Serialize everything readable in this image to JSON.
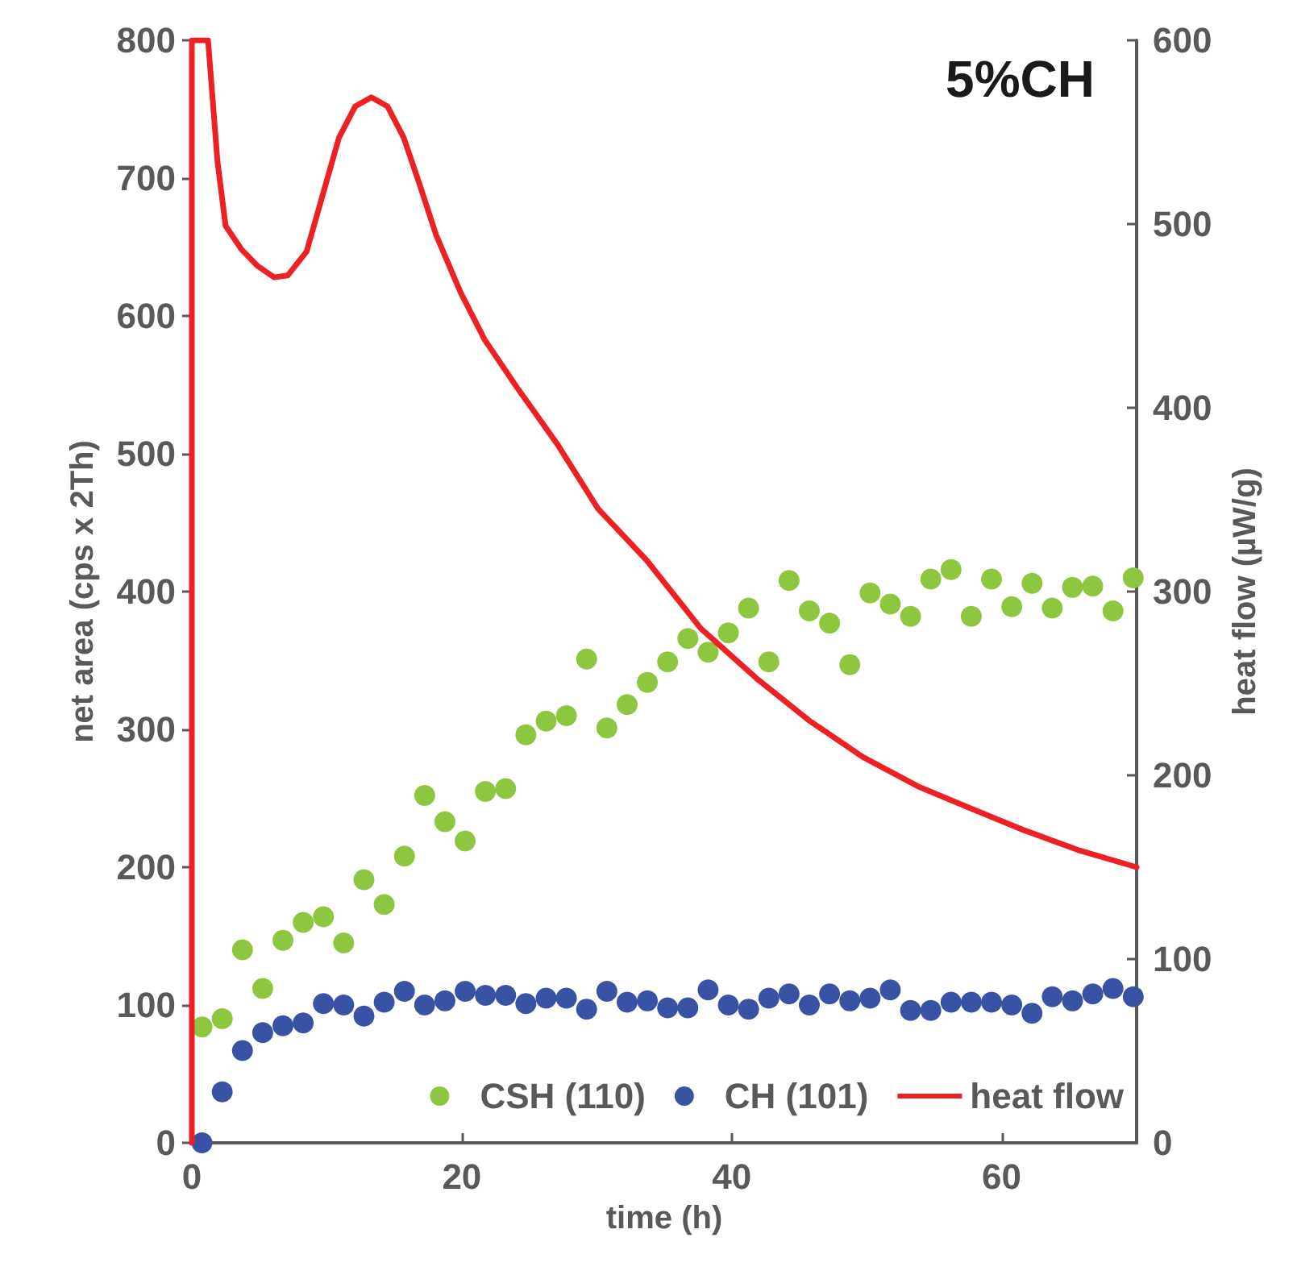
{
  "chart_data": {
    "type": "scatter",
    "title": "5%CH",
    "xlabel": "time (h)",
    "ylabel": "net area (cps x 2Th)",
    "y2label": "heat flow (µW/g)",
    "x": [
      0.75,
      2.25,
      3.75,
      5.25,
      6.75,
      8.25,
      9.75,
      11.25,
      12.75,
      14.25,
      15.75,
      17.25,
      18.75,
      20.25,
      21.75,
      23.25,
      24.75,
      26.25,
      27.75,
      29.25,
      30.75,
      32.25,
      33.75,
      35.25,
      36.75,
      38.25,
      39.75,
      41.25,
      42.75,
      44.25,
      45.75,
      47.25,
      48.75,
      50.25,
      51.75,
      53.25,
      54.75,
      56.25,
      57.75,
      59.25,
      60.75,
      62.25,
      63.75,
      65.25,
      66.75,
      68.25,
      69.75
    ],
    "series": [
      {
        "name": "CSH (110)",
        "marker": "circle",
        "color": "#8dc63f",
        "values": [
          84,
          90,
          140,
          112,
          147,
          160,
          164,
          145,
          191,
          173,
          208,
          252,
          233,
          219,
          255,
          257,
          296,
          306,
          310,
          351,
          301,
          318,
          334,
          349,
          366,
          356,
          370,
          388,
          349,
          408,
          386,
          377,
          347,
          399,
          391,
          382,
          409,
          416,
          382,
          409,
          389,
          406,
          388,
          403,
          404,
          386,
          410
        ]
      },
      {
        "name": "CH (101)",
        "marker": "circle",
        "color": "#3953a4",
        "values": [
          0,
          37,
          67,
          80,
          85,
          87,
          101,
          100,
          92,
          102,
          110,
          100,
          103,
          110,
          107,
          107,
          101,
          105,
          105,
          97,
          110,
          102,
          103,
          98,
          98,
          111,
          100,
          97,
          105,
          108,
          100,
          108,
          103,
          105,
          111,
          96,
          96,
          102,
          102,
          102,
          100,
          94,
          106,
          103,
          108,
          112,
          106
        ]
      },
      {
        "name": "heat flow",
        "type": "line",
        "marker": "none",
        "axis": "y2",
        "color": "#ed2024",
        "x": [
          0,
          0,
          1.2,
          1.9,
          2.5,
          3.7,
          4.9,
          6.1,
          7.1,
          8.5,
          9.7,
          10.9,
          12.1,
          13.3,
          14.5,
          15.7,
          16.9,
          18.1,
          19.9,
          21.7,
          24.1,
          27.1,
          30.1,
          33.7,
          37.7,
          41.8,
          45.7,
          49.7,
          53.8,
          57.7,
          61.7,
          65.8,
          70
        ],
        "values": [
          0,
          600,
          600,
          534,
          499,
          486,
          477,
          471,
          472,
          485,
          516,
          547,
          564,
          569,
          564,
          547,
          521,
          494,
          463,
          437,
          411,
          380,
          345,
          317,
          280,
          253,
          230,
          210,
          194,
          182,
          170,
          159,
          150
        ]
      }
    ],
    "xlim": [
      0,
      70
    ],
    "xticks": [
      0,
      20,
      40,
      60
    ],
    "ylim": [
      0,
      800
    ],
    "yticks": [
      0,
      100,
      200,
      300,
      400,
      500,
      600,
      700,
      800
    ],
    "y2lim": [
      0,
      600
    ],
    "y2ticks": [
      0,
      100,
      200,
      300,
      400,
      500,
      600
    ],
    "legend": "bottom right",
    "line_style": "solid"
  }
}
